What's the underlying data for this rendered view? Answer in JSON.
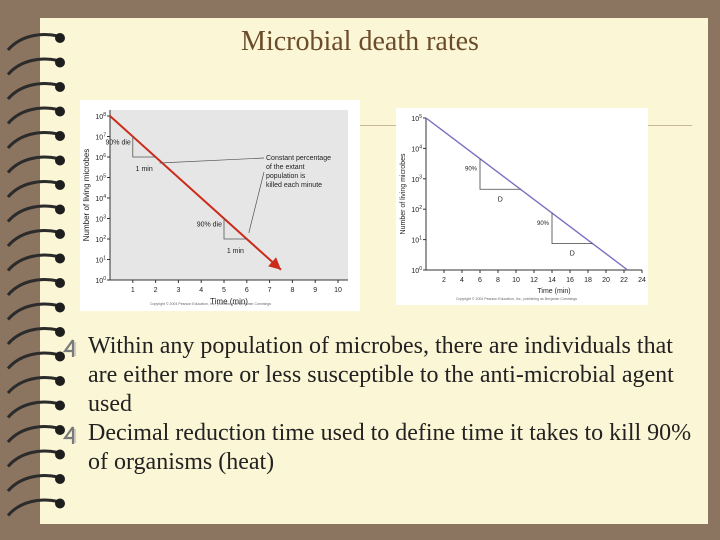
{
  "slide": {
    "title": "Microbial death rates",
    "bullets": [
      "Within any population of microbes, there are individuals that are either more or less susceptible to the anti-microbial agent used",
      "Decimal reduction time used to define time it takes to kill 90% of organisms (heat)"
    ],
    "bullet_icon": "4-glyph-bullet-icon"
  },
  "chart_data": [
    {
      "type": "line",
      "xlabel": "Time (min)",
      "ylabel": "Number of living microbes",
      "x_ticks": [
        "1",
        "2",
        "3",
        "4",
        "5",
        "6",
        "7",
        "8",
        "9",
        "10"
      ],
      "y_ticks": [
        "10^0",
        "10^1",
        "10^2",
        "10^3",
        "10^4",
        "10^5",
        "10^6",
        "10^7",
        "10^8"
      ],
      "xlim": [
        0,
        10
      ],
      "ylim_log10": [
        0,
        8
      ],
      "series": [
        {
          "x": [
            0,
            7.5
          ],
          "y_log10": [
            8,
            0.5
          ],
          "color": "#cc2a1a"
        }
      ],
      "annotations": [
        {
          "text": "90% die",
          "note": "1 min"
        },
        {
          "text": "90% die",
          "note": "1 min"
        },
        {
          "text": "Constant percentage of the extant population is killed each minute"
        }
      ],
      "shaded_background": true,
      "credit": "Copyright © 2004 Pearson Education, Inc., publishing as Benjamin Cummings"
    },
    {
      "type": "line",
      "xlabel": "Time (min)",
      "ylabel": "Number of living microbes",
      "x_ticks": [
        "2",
        "4",
        "6",
        "8",
        "10",
        "12",
        "14",
        "16",
        "18",
        "20",
        "22",
        "24"
      ],
      "y_ticks": [
        "10^0",
        "10^1",
        "10^2",
        "10^3",
        "10^4",
        "10^5"
      ],
      "xlim": [
        0,
        24
      ],
      "ylim_log10": [
        0,
        5
      ],
      "series": [
        {
          "x": [
            0,
            22.4
          ],
          "y_log10": [
            5,
            0
          ],
          "color": "#7b6fc4"
        }
      ],
      "annotations": [
        {
          "text": "90%",
          "note": "D"
        },
        {
          "text": "90%",
          "note": "D"
        }
      ],
      "credit": "Copyright © 2004 Pearson Education, Inc., publishing as Benjamin Cummings"
    }
  ]
}
